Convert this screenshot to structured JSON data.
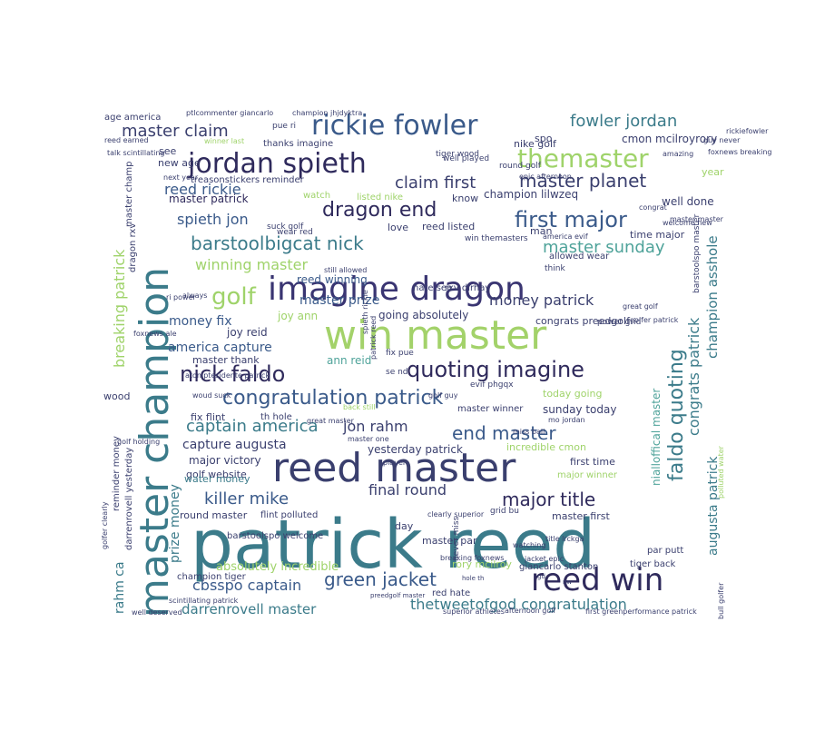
{
  "words": [
    {
      "text": "patrick reed",
      "color": "#3b7b8a"
    },
    {
      "text": "reed master",
      "color": "#3a3f6e"
    },
    {
      "text": "win master",
      "color": "#a3d26a"
    },
    {
      "text": "imagine dragon",
      "color": "#3a3572"
    },
    {
      "text": "master champion",
      "color": "#3b7b8a"
    },
    {
      "text": "jordan spieth",
      "color": "#2f2a5c"
    },
    {
      "text": "rickie fowler",
      "color": "#3a5a8a"
    },
    {
      "text": "reed win",
      "color": "#2f2a5c"
    },
    {
      "text": "themaster",
      "color": "#9fd36a"
    },
    {
      "text": "quoting imagine",
      "color": "#2f2a5c"
    },
    {
      "text": "congratulation patrick",
      "color": "#3a5a8a"
    },
    {
      "text": "nick faldo",
      "color": "#2f2a5c"
    },
    {
      "text": "green jacket",
      "color": "#3a5a8a"
    },
    {
      "text": "major title",
      "color": "#2f2a5c"
    },
    {
      "text": "first major",
      "color": "#3a5a8a"
    },
    {
      "text": "dragon end",
      "color": "#2f2a5c"
    },
    {
      "text": "golf",
      "color": "#9fd36a"
    },
    {
      "text": "faldo quoting",
      "color": "#3b7b8a"
    },
    {
      "text": "master planet",
      "color": "#3a3f6e"
    },
    {
      "text": "barstoolbigcat nick",
      "color": "#3b7b8a"
    },
    {
      "text": "captain america",
      "color": "#3b7b8a"
    },
    {
      "text": "end master",
      "color": "#3a5a8a"
    },
    {
      "text": "killer mike",
      "color": "#3a5a8a"
    },
    {
      "text": "master sunday",
      "color": "#4fa39a"
    },
    {
      "text": "fowler jordan",
      "color": "#3b7b8a"
    },
    {
      "text": "claim first",
      "color": "#3a3f6e"
    },
    {
      "text": "master claim",
      "color": "#3a3f6e"
    },
    {
      "text": "thetweetofgod congratulation",
      "color": "#3b7b8a"
    },
    {
      "text": "winning master",
      "color": "#9fd36a"
    },
    {
      "text": "money patrick",
      "color": "#3a3f6e"
    },
    {
      "text": "final round",
      "color": "#3a3f6e"
    },
    {
      "text": "cbsspo captain",
      "color": "#3a5a8a"
    },
    {
      "text": "darrenrovell master",
      "color": "#3b7b8a"
    },
    {
      "text": "jon rahm",
      "color": "#3a3f6e"
    },
    {
      "text": "reed rickie",
      "color": "#3a5a8a"
    },
    {
      "text": "spieth jon",
      "color": "#3a5a8a"
    },
    {
      "text": "money fix",
      "color": "#3a5a8a"
    },
    {
      "text": "master prize",
      "color": "#3a5a8a"
    },
    {
      "text": "america capture",
      "color": "#3a5a8a"
    },
    {
      "text": "capture augusta",
      "color": "#3a3f6e"
    },
    {
      "text": "prize money",
      "color": "#3b7b8a"
    },
    {
      "text": "breaking patrick",
      "color": "#9fd36a"
    },
    {
      "text": "rahm ca",
      "color": "#3b7b8a"
    },
    {
      "text": "congrats patrick",
      "color": "#3b7b8a"
    },
    {
      "text": "augusta patrick",
      "color": "#3b7b8a"
    },
    {
      "text": "champion asshole",
      "color": "#3b7b8a"
    },
    {
      "text": "nialloffical master",
      "color": "#4fa39a"
    },
    {
      "text": "master patrick",
      "color": "#2f2a5c"
    },
    {
      "text": "absolutely incredible",
      "color": "#9fd36a"
    },
    {
      "text": "rory mcilroy",
      "color": "#9fd36a"
    },
    {
      "text": "reed winning",
      "color": "#3a5a8a"
    },
    {
      "text": "going absolutely",
      "color": "#3a3f6e"
    },
    {
      "text": "major victory",
      "color": "#3a3f6e"
    },
    {
      "text": "golf website",
      "color": "#3a3f6e"
    },
    {
      "text": "water money",
      "color": "#3b7b8a"
    },
    {
      "text": "round master",
      "color": "#3a3f6e"
    },
    {
      "text": "joy ann",
      "color": "#9fd36a"
    },
    {
      "text": "joy reid",
      "color": "#3a3f6e"
    },
    {
      "text": "master thank",
      "color": "#3a3f6e"
    },
    {
      "text": "ann reid",
      "color": "#4fa39a"
    },
    {
      "text": "congrats preedgolf",
      "color": "#3a3f6e"
    },
    {
      "text": "sunday today",
      "color": "#3a3f6e"
    },
    {
      "text": "today going",
      "color": "#9fd36a"
    },
    {
      "text": "yesterday patrick",
      "color": "#3a3f6e"
    },
    {
      "text": "incredible cmon",
      "color": "#9fd36a"
    },
    {
      "text": "first time",
      "color": "#3a3f6e"
    },
    {
      "text": "major winner",
      "color": "#9fd36a"
    },
    {
      "text": "master first",
      "color": "#3a3f6e"
    },
    {
      "text": "time major",
      "color": "#3a3f6e"
    },
    {
      "text": "tiger back",
      "color": "#3a3f6e"
    },
    {
      "text": "champion lilwzeq",
      "color": "#3a3f6e"
    },
    {
      "text": "well done",
      "color": "#3a3f6e"
    },
    {
      "text": "cmon mcilroyrory",
      "color": "#3a3f6e"
    },
    {
      "text": "nike golf",
      "color": "#3a3f6e"
    },
    {
      "text": "thanks imagine",
      "color": "#3a3f6e"
    },
    {
      "text": "new age",
      "color": "#3a3f6e"
    },
    {
      "text": "wood",
      "color": "#3a3f6e"
    },
    {
      "text": "fix flint",
      "color": "#3a3f6e"
    },
    {
      "text": "th hole",
      "color": "#3a3f6e"
    },
    {
      "text": "flint polluted",
      "color": "#3a3f6e"
    },
    {
      "text": "master par",
      "color": "#3a3f6e"
    },
    {
      "text": "par putt",
      "color": "#3a3f6e"
    },
    {
      "text": "love",
      "color": "#3a3f6e"
    },
    {
      "text": "reed listed",
      "color": "#3a3f6e"
    },
    {
      "text": "know",
      "color": "#3a3f6e"
    },
    {
      "text": "man",
      "color": "#3a3f6e"
    },
    {
      "text": "spo",
      "color": "#3a3f6e"
    },
    {
      "text": "see",
      "color": "#3a3f6e"
    },
    {
      "text": "year",
      "color": "#9fd36a"
    },
    {
      "text": "day",
      "color": "#3a3f6e"
    },
    {
      "text": "red hate",
      "color": "#3a3f6e"
    },
    {
      "text": "master winner",
      "color": "#3a3f6e"
    },
    {
      "text": "watch",
      "color": "#9fd36a"
    },
    {
      "text": "listed nike",
      "color": "#9fd36a"
    },
    {
      "text": "reminder money",
      "color": "#3a3f6e"
    },
    {
      "text": "darrenrovell yesterday",
      "color": "#3a3f6e"
    },
    {
      "text": "master champ",
      "color": "#3a3f6e"
    },
    {
      "text": "dragon rxv",
      "color": "#3a3f6e"
    },
    {
      "text": "champion tiger",
      "color": "#3a3f6e"
    },
    {
      "text": "giancarlo stanton",
      "color": "#3a3f6e"
    },
    {
      "text": "allowed wear",
      "color": "#3a3f6e"
    },
    {
      "text": "hate see",
      "color": "#3a3f6e"
    },
    {
      "text": "rxv dirhay",
      "color": "#3a3f6e"
    },
    {
      "text": "barstoolspo welcome",
      "color": "#3a3f6e"
    },
    {
      "text": "never miss",
      "color": "#3a3f6e"
    },
    {
      "text": "grid bu",
      "color": "#3a3f6e"
    },
    {
      "text": "round golf",
      "color": "#3a3f6e"
    },
    {
      "text": "tiger wood",
      "color": "#3a3f6e"
    },
    {
      "text": "age america",
      "color": "#3a3f6e"
    },
    {
      "text": "treasonstickers reminder",
      "color": "#3a3f6e"
    },
    {
      "text": "barstoolspo master",
      "color": "#3a3f6e"
    },
    {
      "text": "win themasters",
      "color": "#3a3f6e"
    },
    {
      "text": "evif phgqx",
      "color": "#3a3f6e"
    },
    {
      "text": "fix pue",
      "color": "#3a3f6e"
    },
    {
      "text": "suck golf",
      "color": "#3a3f6e"
    },
    {
      "text": "wear red",
      "color": "#3a3f6e"
    },
    {
      "text": "pue ri",
      "color": "#3a3f6e"
    },
    {
      "text": "power grid",
      "color": "#3a3f6e"
    },
    {
      "text": "se nd",
      "color": "#3a3f6e"
    },
    {
      "text": "think",
      "color": "#3a3f6e"
    },
    {
      "text": "well played",
      "color": "#3a3f6e"
    },
    {
      "text": "ptlcommenter giancarlo",
      "color": "#3a3f6e"
    },
    {
      "text": "champion jhjdyktra",
      "color": "#3a3f6e"
    },
    {
      "text": "reed earned",
      "color": "#3a3f6e"
    },
    {
      "text": "winner last",
      "color": "#9fd36a"
    },
    {
      "text": "talk scintillating",
      "color": "#3a3f6e"
    },
    {
      "text": "next year",
      "color": "#3a3f6e"
    },
    {
      "text": "rickiefowler",
      "color": "#3a3f6e"
    },
    {
      "text": "foxnews breaking",
      "color": "#3a3f6e"
    },
    {
      "text": "guy never",
      "color": "#3a3f6e"
    },
    {
      "text": "amazing",
      "color": "#3a3f6e"
    },
    {
      "text": "epic afternoon",
      "color": "#3a3f6e"
    },
    {
      "text": "congrat",
      "color": "#3a3f6e"
    },
    {
      "text": "america evif",
      "color": "#3a3f6e"
    },
    {
      "text": "welcome new",
      "color": "#3a3f6e"
    },
    {
      "text": "master master",
      "color": "#3a3f6e"
    },
    {
      "text": "great golf",
      "color": "#3a3f6e"
    },
    {
      "text": "golfer patrick",
      "color": "#3a3f6e"
    },
    {
      "text": "ri power",
      "color": "#3a3f6e"
    },
    {
      "text": "foxnews ale",
      "color": "#3a3f6e"
    },
    {
      "text": "always",
      "color": "#3a3f6e"
    },
    {
      "text": "still allowed",
      "color": "#3a3f6e"
    },
    {
      "text": "patrick reed",
      "color": "#3a3f6e"
    },
    {
      "text": "spieth rickie",
      "color": "#3a3f6e"
    },
    {
      "text": "golf guy",
      "color": "#3a3f6e"
    },
    {
      "text": "atoniptesidente patrick",
      "color": "#3a3f6e"
    },
    {
      "text": "woud suck",
      "color": "#3a3f6e"
    },
    {
      "text": "mo jordan",
      "color": "#3a3f6e"
    },
    {
      "text": "miss ball",
      "color": "#3a3f6e"
    },
    {
      "text": "back still",
      "color": "#9fd36a"
    },
    {
      "text": "great master",
      "color": "#3a3f6e"
    },
    {
      "text": "golf holding",
      "color": "#3a3f6e"
    },
    {
      "text": "master one",
      "color": "#3a3f6e"
    },
    {
      "text": "player",
      "color": "#3a3f6e"
    },
    {
      "text": "clearly superior",
      "color": "#3a3f6e"
    },
    {
      "text": "jacket epic",
      "color": "#3a3f6e"
    },
    {
      "text": "watching",
      "color": "#3a3f6e"
    },
    {
      "text": "breaking foxnews",
      "color": "#3a3f6e"
    },
    {
      "text": "title lrckga",
      "color": "#3a3f6e"
    },
    {
      "text": "golfer clearly",
      "color": "#3a3f6e"
    },
    {
      "text": "scintillating patrick",
      "color": "#3a3f6e"
    },
    {
      "text": "well deserved",
      "color": "#3a3f6e"
    },
    {
      "text": "superior athletes",
      "color": "#3a3f6e"
    },
    {
      "text": "afternoon golf",
      "color": "#3a3f6e"
    },
    {
      "text": "first greenperformance patrick",
      "color": "#3a3f6e"
    },
    {
      "text": "bull golfer",
      "color": "#3a3f6e"
    },
    {
      "text": "preedgolf master",
      "color": "#3a3f6e"
    },
    {
      "text": "hole th",
      "color": "#3a3f6e"
    },
    {
      "text": "gd",
      "color": "#3a3f6e"
    },
    {
      "text": "polluted water",
      "color": "#9fd36a"
    },
    {
      "text": "nw",
      "color": "#3a3f6e"
    }
  ]
}
